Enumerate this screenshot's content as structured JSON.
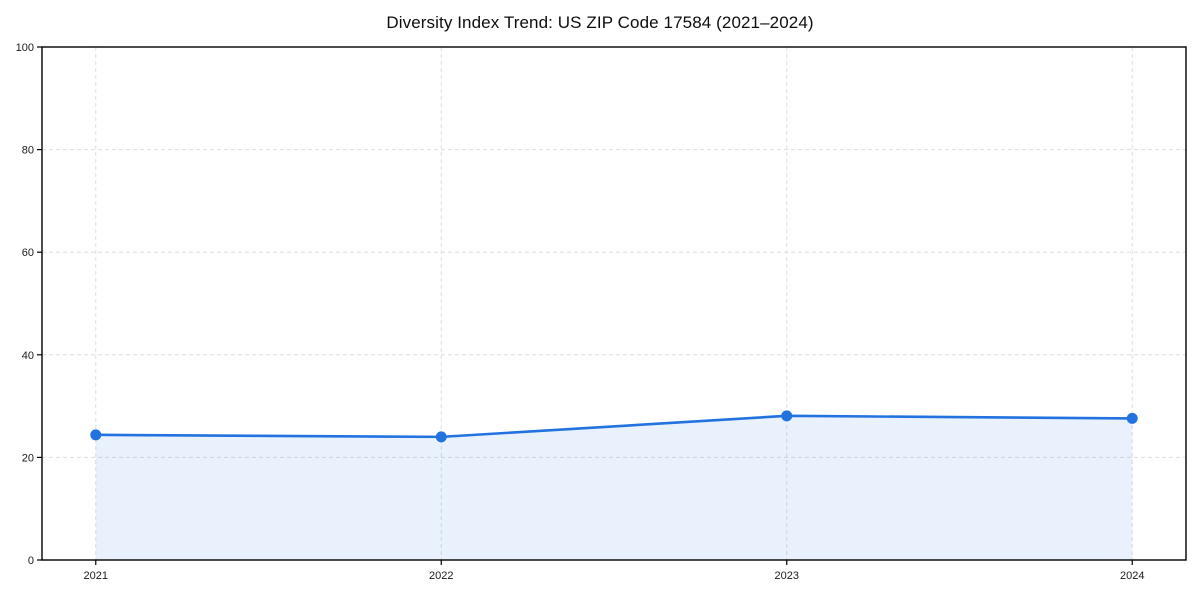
{
  "page": {
    "title": "Diversity Index Trend: US ZIP Code 17584 (2021–2024)"
  },
  "chart_data": {
    "type": "line",
    "title": "Diversity Index Trend: US ZIP Code 17584 (2021–2024)",
    "categories": [
      "2021",
      "2022",
      "2023",
      "2024"
    ],
    "series": [
      {
        "name": "Diversity Index",
        "values": [
          24.4,
          24.0,
          28.1,
          27.6
        ]
      }
    ],
    "xlabel": "",
    "ylabel": "",
    "ylim": [
      0,
      100
    ],
    "yticks": [
      0,
      20,
      40,
      60,
      80,
      100
    ],
    "grid": true,
    "grid_style": "dashed",
    "legend": false,
    "colors": {
      "line": "#2272e0",
      "marker": "#2272e0",
      "fill": "#2272e0",
      "fill_opacity": 0.1,
      "grid": "#dedede",
      "axis": "#000000",
      "tick_label": "#1a1a1a",
      "background": "#ffffff"
    }
  }
}
